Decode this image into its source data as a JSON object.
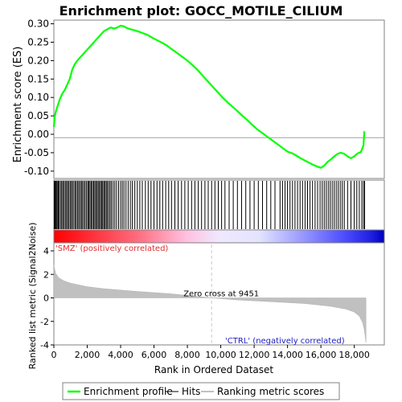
{
  "chart_data": {
    "type": "line",
    "title": "Enrichment plot: GOCC_MOTILE_CILIUM",
    "panels": {
      "enrichment": {
        "ylabel": "Enrichment score (ES)",
        "ylim": [
          -0.12,
          0.31
        ],
        "yticks": [
          "0.30",
          "0.25",
          "0.20",
          "0.15",
          "0.10",
          "0.05",
          "0.00",
          "-0.05",
          "-0.10"
        ],
        "series": [
          {
            "name": "Enrichment profile",
            "color": "#00ff00",
            "x": [
              0,
              60,
              140,
              250,
              350,
              500,
              650,
              800,
              950,
              1100,
              1250,
              1400,
              1600,
              1800,
              2000,
              2200,
              2400,
              2600,
              2800,
              3000,
              3200,
              3400,
              3600,
              3800,
              4000,
              4200,
              4400,
              4600,
              4800,
              5000,
              5300,
              5600,
              5900,
              6200,
              6500,
              6800,
              7100,
              7400,
              7700,
              8000,
              8300,
              8600,
              8900,
              9200,
              9500,
              9800,
              10100,
              10400,
              10700,
              11000,
              11300,
              11600,
              11900,
              12200,
              12500,
              12800,
              13100,
              13400,
              13700,
              14000,
              14300,
              14600,
              14900,
              15200,
              15500,
              15800,
              16000,
              16200,
              16400,
              16600,
              16800,
              17000,
              17200,
              17400,
              17600,
              17800,
              18000,
              18200,
              18400,
              18550,
              18600,
              18650
            ],
            "y": [
              0.02,
              0.05,
              0.065,
              0.08,
              0.095,
              0.11,
              0.12,
              0.135,
              0.15,
              0.175,
              0.19,
              0.2,
              0.21,
              0.22,
              0.23,
              0.24,
              0.25,
              0.26,
              0.27,
              0.28,
              0.285,
              0.29,
              0.287,
              0.29,
              0.295,
              0.293,
              0.288,
              0.285,
              0.283,
              0.28,
              0.275,
              0.27,
              0.262,
              0.255,
              0.248,
              0.24,
              0.23,
              0.22,
              0.21,
              0.2,
              0.188,
              0.175,
              0.16,
              0.145,
              0.13,
              0.115,
              0.1,
              0.087,
              0.075,
              0.063,
              0.05,
              0.038,
              0.025,
              0.013,
              0.003,
              -0.007,
              -0.017,
              -0.027,
              -0.037,
              -0.047,
              -0.052,
              -0.06,
              -0.068,
              -0.075,
              -0.082,
              -0.088,
              -0.091,
              -0.085,
              -0.075,
              -0.068,
              -0.06,
              -0.053,
              -0.05,
              -0.053,
              -0.06,
              -0.065,
              -0.06,
              -0.052,
              -0.048,
              -0.03,
              0.005,
              0.003
            ]
          }
        ]
      },
      "ranking": {
        "ylabel": "Ranked list metric (Signal2Noise)",
        "ylim": [
          -4,
          4
        ],
        "yticks": [
          "4",
          "2",
          "0",
          "-2",
          "-4"
        ],
        "xlabel": "Rank in Ordered Dataset",
        "xticks": [
          "0",
          "2,000",
          "4,000",
          "6,000",
          "8,000",
          "10,000",
          "12,000",
          "14,000",
          "16,000",
          "18,000"
        ],
        "xlim": [
          0,
          19800
        ],
        "n_genes": 18700,
        "zero_cross": 9451,
        "zero_cross_label": "Zero cross at 9451",
        "pos_label": "'SMZ' (positively correlated)",
        "neg_label": "'CTRL' (negatively correlated)",
        "metric_profile": {
          "rank": [
            0,
            100,
            300,
            600,
            1000,
            2000,
            3000,
            5000,
            7000,
            9451,
            11000,
            13000,
            15000,
            16500,
            17500,
            18000,
            18300,
            18500,
            18600,
            18700
          ],
          "value": [
            2.8,
            2.1,
            1.7,
            1.45,
            1.25,
            0.95,
            0.78,
            0.55,
            0.35,
            0.0,
            -0.18,
            -0.32,
            -0.48,
            -0.7,
            -0.95,
            -1.2,
            -1.55,
            -2.1,
            -2.7,
            -3.8
          ]
        }
      }
    },
    "hits": [
      30,
      60,
      100,
      150,
      200,
      260,
      320,
      400,
      470,
      540,
      610,
      690,
      760,
      830,
      900,
      980,
      1050,
      1120,
      1200,
      1280,
      1350,
      1430,
      1500,
      1580,
      1650,
      1720,
      1800,
      1880,
      1960,
      2040,
      2100,
      2170,
      2240,
      2310,
      2380,
      2450,
      2520,
      2590,
      2660,
      2730,
      2800,
      2870,
      2930,
      3000,
      3070,
      3140,
      3210,
      3290,
      3370,
      3450,
      3550,
      3650,
      3760,
      3880,
      4000,
      4100,
      4200,
      4320,
      4450,
      4580,
      4700,
      4850,
      5000,
      5150,
      5300,
      5480,
      5650,
      5820,
      6000,
      6180,
      6350,
      6520,
      6700,
      6880,
      7050,
      7250,
      7450,
      7650,
      7850,
      8050,
      8250,
      8450,
      8650,
      8850,
      9050,
      9250,
      9450,
      9650,
      9850,
      10050,
      10250,
      10500,
      10750,
      11000,
      11250,
      11500,
      11750,
      12000,
      12250,
      12500,
      12750,
      13000,
      13250,
      13550,
      13700,
      13850,
      14000,
      14150,
      14300,
      14450,
      14600,
      14750,
      14900,
      15050,
      15200,
      15350,
      15500,
      15650,
      15800,
      15950,
      16080,
      16200,
      16320,
      16440,
      16560,
      16680,
      16800,
      16920,
      17040,
      17160,
      17280,
      17400,
      17600,
      17800,
      18000,
      18150,
      18300,
      18450,
      18550,
      18620
    ],
    "legend": [
      {
        "label": "Enrichment profile",
        "color": "#00ff00",
        "kind": "line"
      },
      {
        "label": "Hits",
        "color": "#000000",
        "kind": "line"
      },
      {
        "label": "Ranking metric scores",
        "color": "#c0c0c0",
        "kind": "line"
      }
    ],
    "colors": {
      "pos_label": "#e03030",
      "neg_label": "#2020c0",
      "metric_fill": "#c0c0c0",
      "zero_line": "#c8c8c8"
    }
  }
}
